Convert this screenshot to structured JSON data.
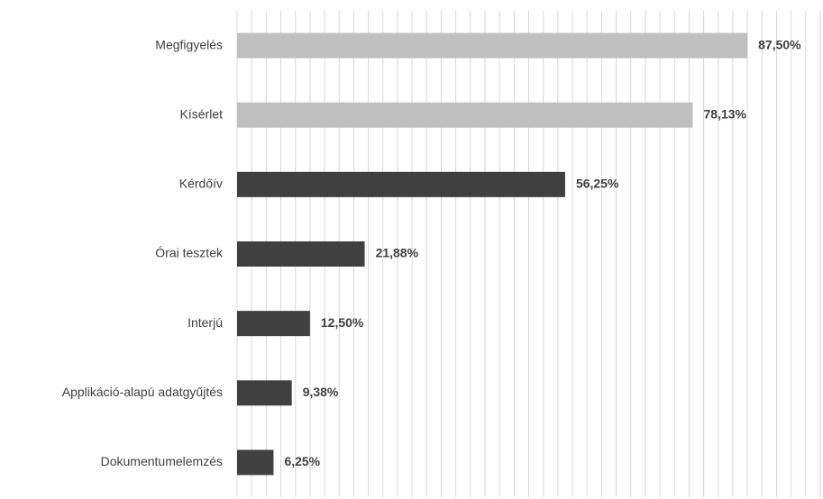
{
  "chart_data": {
    "type": "hbar",
    "categories": [
      "Megfigyelés",
      "Kísérlet",
      "Kérdőív",
      "Órai tesztek",
      "Interjú",
      "Applikáció-alapú adatgyűjtés",
      "Dokumentumelemzés"
    ],
    "values": [
      87.5,
      78.13,
      56.25,
      21.88,
      12.5,
      9.38,
      6.25
    ],
    "value_labels": [
      "87,50%",
      "78,13%",
      "56,25%",
      "21,88%",
      "12,50%",
      "9,38%",
      "6,25%"
    ],
    "colors": [
      "#bfbfbf",
      "#bfbfbf",
      "#404040",
      "#404040",
      "#404040",
      "#404040",
      "#404040"
    ],
    "xlim": [
      0,
      100
    ],
    "xticks": [
      0,
      2.5,
      5,
      7.5,
      10,
      12.5,
      15,
      17.5,
      20,
      22.5,
      25,
      27.5,
      30,
      32.5,
      35,
      37.5,
      40,
      42.5,
      45,
      47.5,
      50,
      52.5,
      55,
      57.5,
      60,
      62.5,
      65,
      67.5,
      70,
      72.5,
      75,
      77.5,
      80,
      82.5,
      85,
      87.5,
      90,
      92.5,
      95,
      97.5,
      100
    ],
    "grid": true
  }
}
